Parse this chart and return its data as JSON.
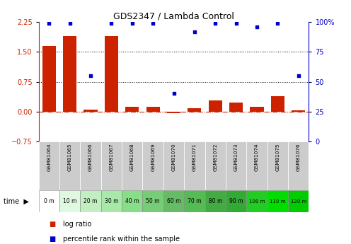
{
  "title": "GDS2347 / Lambda Control",
  "samples": [
    "GSM81064",
    "GSM81065",
    "GSM81066",
    "GSM81067",
    "GSM81068",
    "GSM81069",
    "GSM81070",
    "GSM81071",
    "GSM81072",
    "GSM81073",
    "GSM81074",
    "GSM81075",
    "GSM81076"
  ],
  "time_labels": [
    "0 m",
    "10 m",
    "20 m",
    "30 m",
    "40 m",
    "50 m",
    "60 m",
    "70 m",
    "80 m",
    "90 m",
    "100 m",
    "110 m",
    "120 m"
  ],
  "log_ratio": [
    1.65,
    1.9,
    0.05,
    1.9,
    0.12,
    0.12,
    -0.04,
    0.09,
    0.28,
    0.22,
    0.12,
    0.38,
    0.04
  ],
  "percentile": [
    99,
    99,
    55,
    99,
    99,
    99,
    40,
    92,
    99,
    99,
    96,
    99,
    55
  ],
  "bar_color": "#cc2200",
  "dot_color": "#0000cc",
  "hline_color": "#cc2200",
  "yticks_left": [
    -0.75,
    0.0,
    0.75,
    1.5,
    2.25
  ],
  "yticks_right": [
    0,
    25,
    50,
    75,
    100
  ],
  "ylim_left": [
    -0.75,
    2.25
  ],
  "ylim_right": [
    0,
    100
  ],
  "sample_header_color": "#cccccc",
  "dotted_lines": [
    0.75,
    1.5
  ],
  "zero_line": 0.0,
  "time_colors": [
    "#ffffff",
    "#e0f7e0",
    "#c2efc2",
    "#a8e8a8",
    "#88dd88",
    "#77cc77",
    "#66bb66",
    "#55bb55",
    "#44aa44",
    "#33aa33",
    "#22cc22",
    "#00dd00",
    "#00cc00"
  ]
}
